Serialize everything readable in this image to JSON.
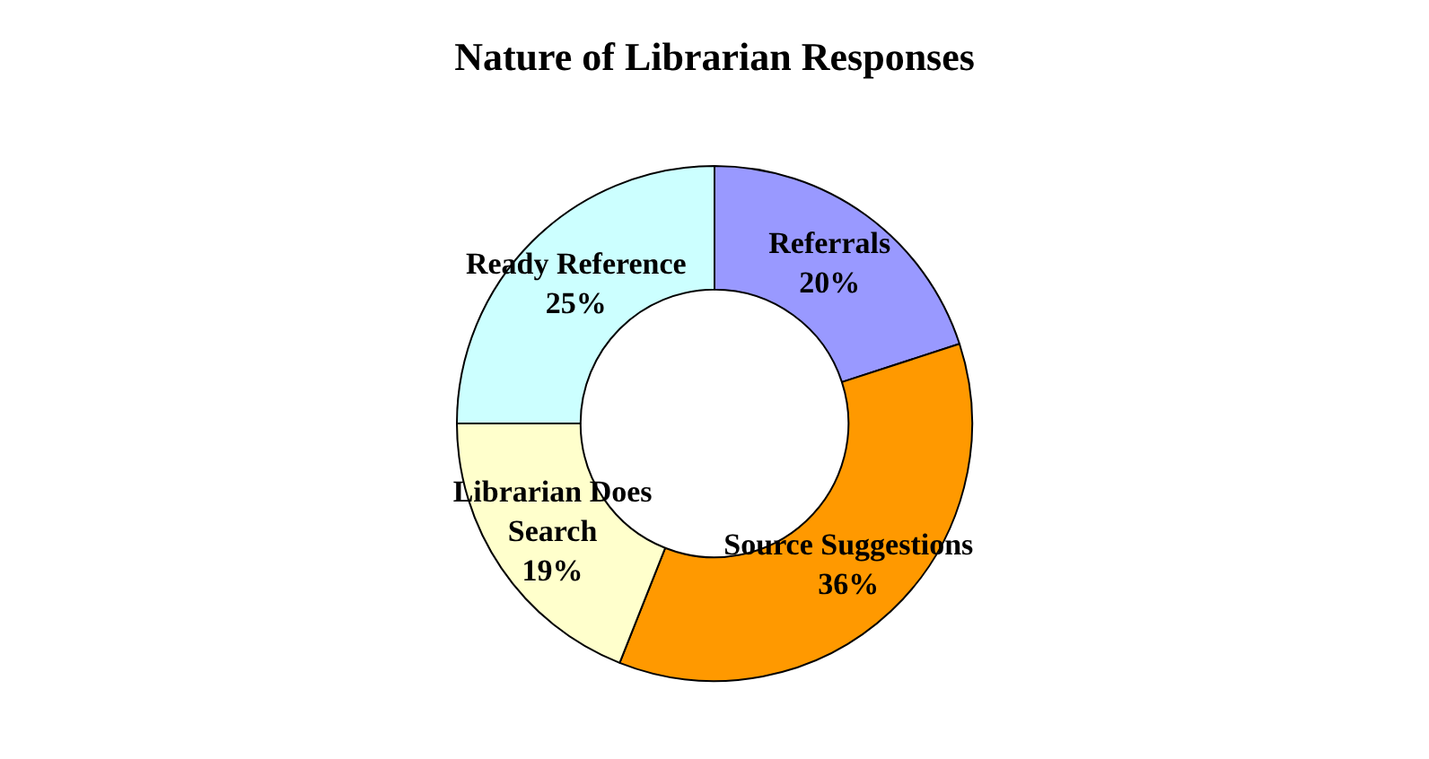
{
  "chart_data": {
    "type": "donut",
    "title": "Nature of Librarian Responses",
    "categories": [
      "Referrals",
      "Source Suggestions",
      "Librarian Does Search",
      "Ready Reference"
    ],
    "values": [
      20,
      36,
      19,
      25
    ],
    "colors": [
      "#9999ff",
      "#ff9900",
      "#ffffcc",
      "#ccffff"
    ],
    "value_labels": [
      "20%",
      "36%",
      "19%",
      "25%"
    ]
  }
}
